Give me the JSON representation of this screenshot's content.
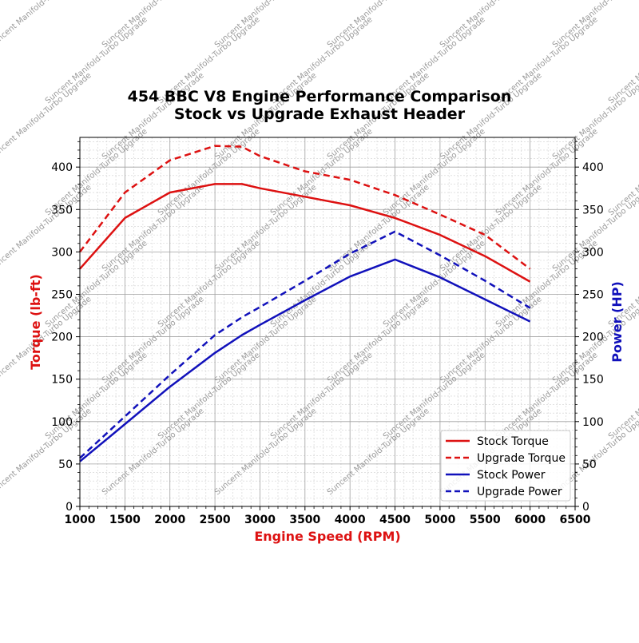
{
  "chart_data": {
    "type": "line",
    "title": "454 BBC V8 Engine Performance Comparison",
    "subtitle": "Stock vs Upgrade Exhaust Header",
    "xlabel": "Engine Speed (RPM)",
    "ylabel_left": "Torque (lb-ft)",
    "ylabel_right": "Power (HP)",
    "xlim": [
      1000,
      6500
    ],
    "ylim_left": [
      0,
      435
    ],
    "ylim_right": [
      0,
      435
    ],
    "x_ticks": [
      1000,
      1500,
      2000,
      2500,
      3000,
      3500,
      4000,
      4500,
      5000,
      5500,
      6000,
      6500
    ],
    "y_ticks_left": [
      0,
      50,
      100,
      150,
      200,
      250,
      300,
      350,
      400
    ],
    "y_ticks_right": [
      0,
      50,
      100,
      150,
      200,
      250,
      300,
      350,
      400
    ],
    "grid": true,
    "legend_position": "bottom-right",
    "series": [
      {
        "name": "Stock Torque",
        "axis": "left",
        "color": "#dd1111",
        "dashed": false,
        "x": [
          1000,
          1500,
          2000,
          2500,
          2800,
          3000,
          3500,
          4000,
          4500,
          5000,
          5500,
          6000
        ],
        "y": [
          280,
          340,
          370,
          380,
          380,
          375,
          365,
          355,
          340,
          320,
          295,
          265
        ]
      },
      {
        "name": "Upgrade Torque",
        "axis": "left",
        "color": "#dd1111",
        "dashed": true,
        "x": [
          1000,
          1500,
          2000,
          2500,
          2800,
          3000,
          3500,
          4000,
          4500,
          5000,
          5500,
          6000
        ],
        "y": [
          300,
          370,
          408,
          425,
          424,
          413,
          395,
          385,
          367,
          344,
          320,
          280
        ]
      },
      {
        "name": "Stock Power",
        "axis": "right",
        "color": "#1111bb",
        "dashed": false,
        "x": [
          1000,
          1500,
          2000,
          2500,
          2800,
          3000,
          3500,
          4000,
          4500,
          5000,
          5500,
          6000
        ],
        "y": [
          53,
          97,
          141,
          181,
          202,
          214,
          243,
          271,
          291,
          270,
          244,
          218
        ]
      },
      {
        "name": "Upgrade Power",
        "axis": "right",
        "color": "#1111bb",
        "dashed": true,
        "x": [
          1000,
          1500,
          2000,
          2500,
          2800,
          3000,
          3500,
          4000,
          4500,
          5000,
          5500,
          6000
        ],
        "y": [
          57,
          106,
          155,
          202,
          223,
          235,
          266,
          298,
          324,
          296,
          266,
          234
        ]
      }
    ],
    "watermark": "Suncent Manifold-Turbo Upgrade",
    "colors": {
      "torque_axis_label": "#dd1111",
      "power_axis_label": "#1111bb",
      "xlabel": "#dd1111",
      "grid": "#a0a0a0",
      "minor_grid": "#d0d0d0"
    }
  }
}
